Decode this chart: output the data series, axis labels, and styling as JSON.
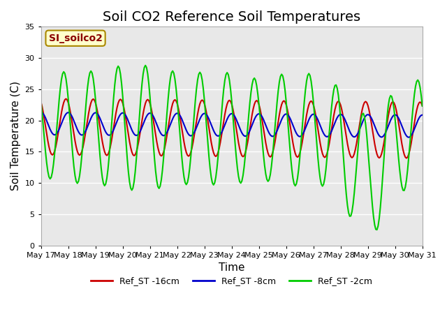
{
  "title": "Soil CO2 Reference Soil Temperatures",
  "xlabel": "Time",
  "ylabel": "Soil Temperature (C)",
  "label_box": "SI_soilco2",
  "ylim": [
    0,
    35
  ],
  "yticks": [
    0,
    5,
    10,
    15,
    20,
    25,
    30,
    35
  ],
  "x_labels": [
    "May 17",
    "May 18",
    "May 19",
    "May 20",
    "May 21",
    "May 22",
    "May 23",
    "May 24",
    "May 25",
    "May 26",
    "May 27",
    "May 28",
    "May 29",
    "May 30",
    "May 31"
  ],
  "color_16cm": "#cc0000",
  "color_8cm": "#0000cc",
  "color_2cm": "#00cc00",
  "legend_16cm": "Ref_ST -16cm",
  "legend_8cm": "Ref_ST -8cm",
  "legend_2cm": "Ref_ST -2cm",
  "background_color": "#f0f0f0",
  "inner_bg_color": "#e8e8e8",
  "title_fontsize": 14,
  "axis_label_fontsize": 11
}
